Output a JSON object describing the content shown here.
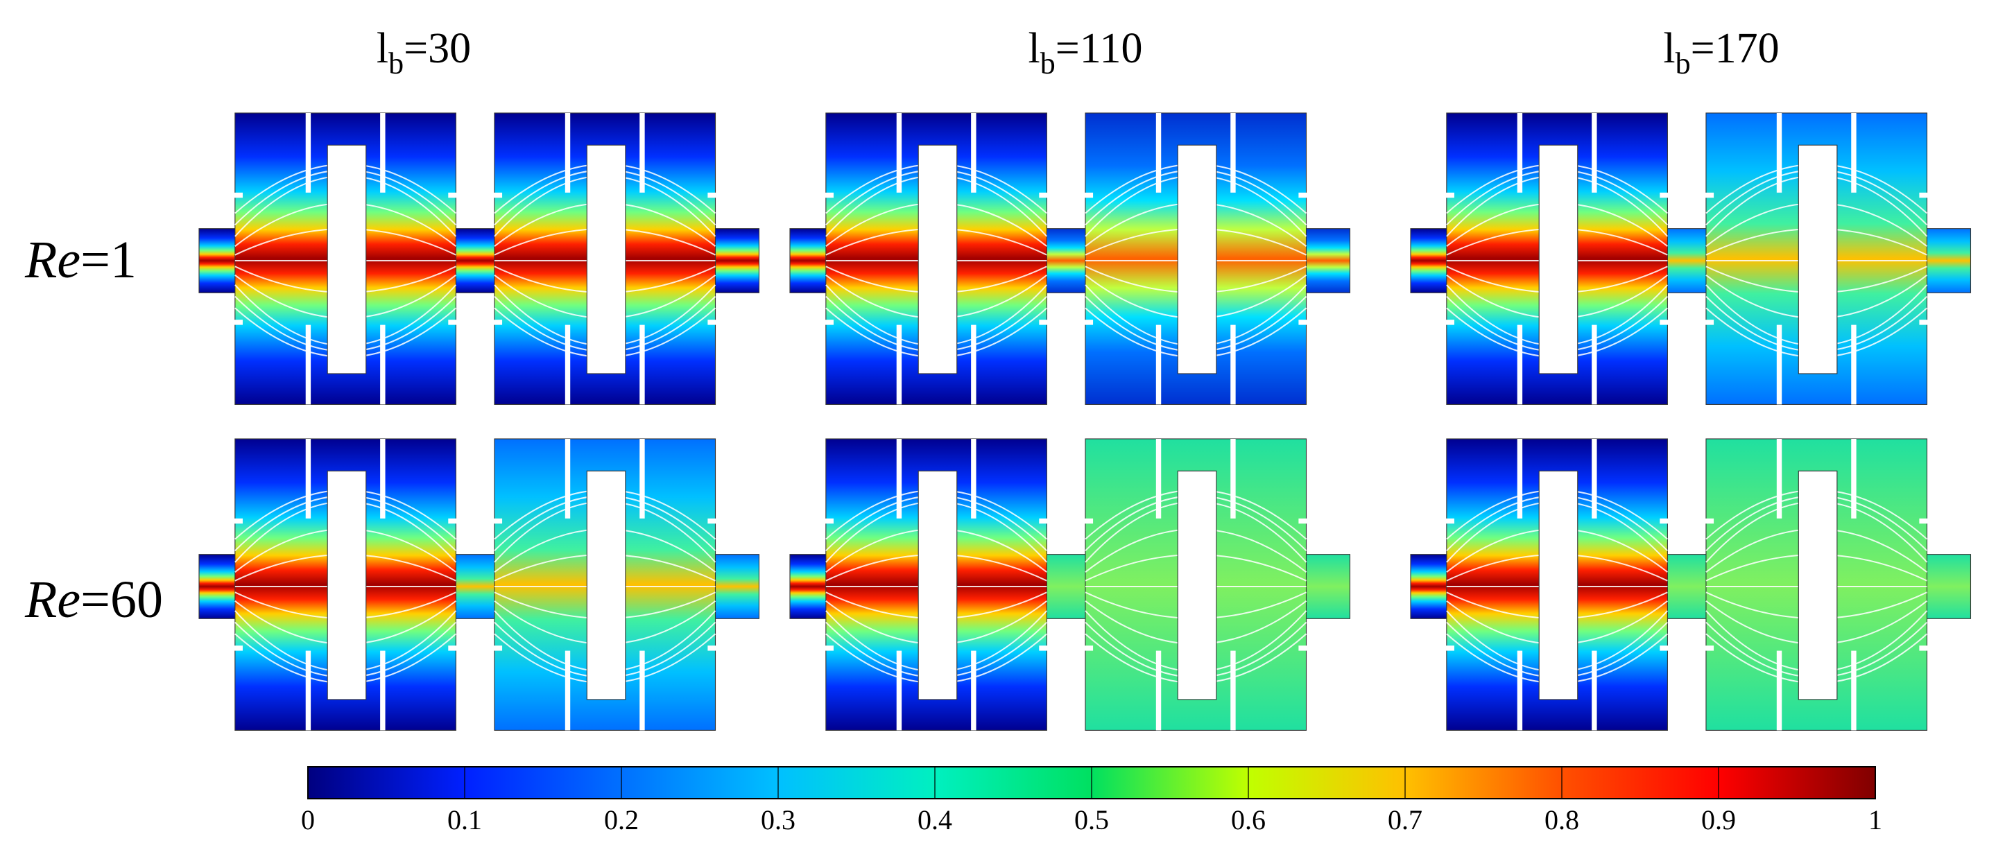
{
  "columns": [
    {
      "symbol": "l",
      "subscript": "b",
      "value": "=30"
    },
    {
      "symbol": "l",
      "subscript": "b",
      "value": "=110"
    },
    {
      "symbol": "l",
      "subscript": "b",
      "value": "=170"
    }
  ],
  "rows": [
    {
      "symbol": "Re",
      "value": "=1"
    },
    {
      "symbol": "Re",
      "value": "=60"
    }
  ],
  "colorbar": {
    "range": [
      0,
      1
    ],
    "ticks": [
      0,
      0.1,
      0.2,
      0.3,
      0.4,
      0.5,
      0.6,
      0.7,
      0.8,
      0.9,
      1
    ]
  }
}
